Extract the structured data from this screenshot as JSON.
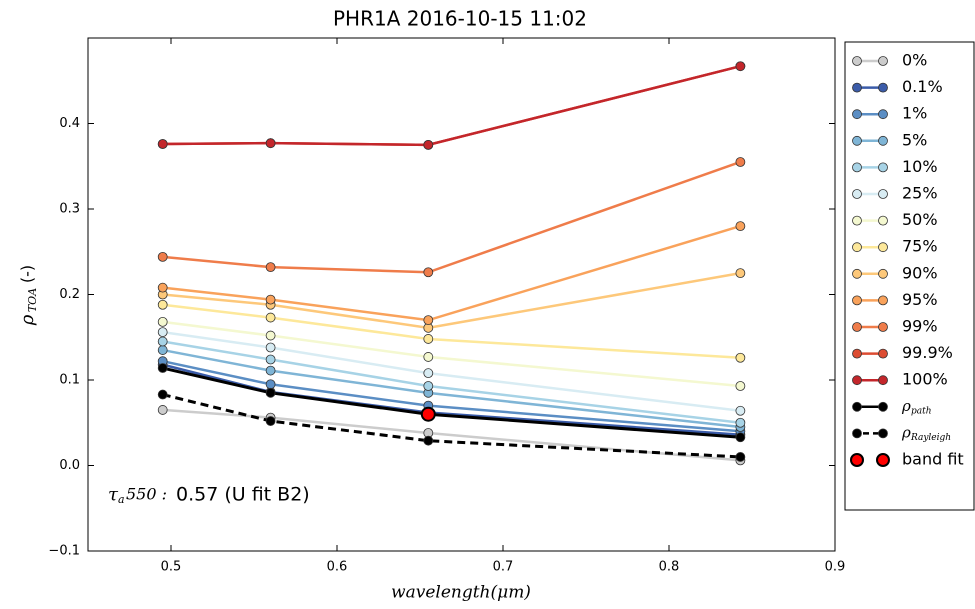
{
  "chart_data": {
    "type": "line",
    "title": "PHR1A 2016-10-15 11:02",
    "x_label": "wavelength(μm)",
    "y_label": {
      "symbol": "ρ",
      "sub": "TOA",
      "rest": "(-)"
    },
    "annotation": {
      "symbol": "τ",
      "sub": "a",
      "rest": "550 :",
      "text": "0.57 (U fit B2)"
    },
    "x": [
      0.495,
      0.56,
      0.655,
      0.843
    ],
    "xlim": [
      0.45,
      0.9
    ],
    "xticks": [
      0.5,
      0.6,
      0.7,
      0.8,
      0.9
    ],
    "ylim": [
      -0.1,
      0.5
    ],
    "yticks": [
      {
        "value": -0.1,
        "label": "−0.1"
      },
      {
        "value": 0,
        "label": "0.0"
      },
      0.1,
      0.2,
      0.3,
      0.4
    ],
    "series": [
      {
        "name": "0%",
        "color": "#cccccc",
        "values": [
          0.065,
          0.056,
          0.038,
          0.006
        ]
      },
      {
        "name": "0.1%",
        "color": "#3b5ca9",
        "values": [
          0.118,
          0.086,
          0.062,
          0.036
        ]
      },
      {
        "name": "1%",
        "color": "#5b8ec4",
        "values": [
          0.122,
          0.095,
          0.07,
          0.04
        ]
      },
      {
        "name": "5%",
        "color": "#7fb5d6",
        "values": [
          0.135,
          0.111,
          0.085,
          0.045
        ]
      },
      {
        "name": "10%",
        "color": "#a7d3e6",
        "values": [
          0.145,
          0.124,
          0.093,
          0.05
        ]
      },
      {
        "name": "25%",
        "color": "#d8ecf3",
        "values": [
          0.156,
          0.138,
          0.108,
          0.064
        ]
      },
      {
        "name": "50%",
        "color": "#f4f8d0",
        "values": [
          0.168,
          0.152,
          0.127,
          0.093
        ]
      },
      {
        "name": "75%",
        "color": "#fde89a",
        "values": [
          0.188,
          0.173,
          0.148,
          0.126
        ]
      },
      {
        "name": "90%",
        "color": "#fdc87a",
        "values": [
          0.2,
          0.188,
          0.161,
          0.225
        ]
      },
      {
        "name": "95%",
        "color": "#f9a25b",
        "values": [
          0.208,
          0.194,
          0.17,
          0.28
        ]
      },
      {
        "name": "99%",
        "color": "#ef7c4a",
        "values": [
          0.244,
          0.232,
          0.226,
          0.355
        ]
      },
      {
        "name": "99.9%",
        "color": "#dc4c32",
        "values": [
          0.376,
          0.377,
          0.375,
          0.467
        ]
      },
      {
        "name": "100%",
        "color": "#c3262b",
        "values": [
          0.376,
          0.377,
          0.375,
          0.467
        ]
      },
      {
        "name": "ρ",
        "name_sub": "path",
        "color": "#000000",
        "values": [
          0.114,
          0.085,
          0.06,
          0.033
        ]
      },
      {
        "name": "ρ",
        "name_sub": "Rayleigh",
        "color": "#000000",
        "dashed": true,
        "values": [
          0.083,
          0.052,
          0.029,
          0.01
        ]
      },
      {
        "name": "band fit",
        "color": "#ff0000",
        "marker_only": true,
        "x": [
          0.655
        ],
        "values": [
          0.06
        ]
      }
    ]
  }
}
